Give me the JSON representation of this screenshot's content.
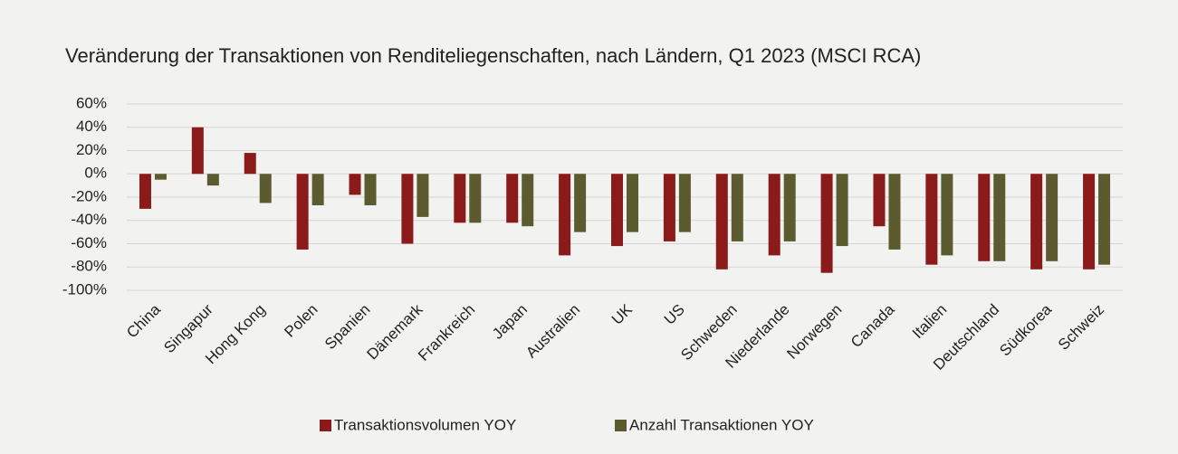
{
  "chart_data": {
    "type": "bar",
    "title": "Veränderung der Transaktionen von Renditeliegenschaften, nach Ländern, Q1 2023 (MSCI RCA)",
    "categories": [
      "China",
      "Singapur",
      "Hong Kong",
      "Polen",
      "Spanien",
      "Dänemark",
      "Frankreich",
      "Japan",
      "Australien",
      "UK",
      "US",
      "Schweden",
      "Niederlande",
      "Norwegen",
      "Canada",
      "Italien",
      "Deutschland",
      "Südkorea",
      "Schweiz"
    ],
    "series": [
      {
        "name": "Transaktionsvolumen YOY",
        "color": "#8b1a1a",
        "values": [
          -30,
          40,
          18,
          -65,
          -18,
          -60,
          -42,
          -42,
          -70,
          -62,
          -58,
          -82,
          -70,
          -85,
          -45,
          -78,
          -75,
          -82,
          -82
        ]
      },
      {
        "name": "Anzahl Transaktionen YOY",
        "color": "#5b5b2f",
        "values": [
          -5,
          -10,
          -25,
          -27,
          -27,
          -37,
          -42,
          -45,
          -50,
          -50,
          -50,
          -58,
          -58,
          -62,
          -65,
          -70,
          -75,
          -75,
          -78
        ]
      }
    ],
    "ylim": [
      -100,
      60
    ],
    "yticks": [
      {
        "value": -100,
        "label": "-100%"
      },
      {
        "value": -80,
        "label": "-80%"
      },
      {
        "value": -60,
        "label": "-60%"
      },
      {
        "value": -40,
        "label": "-40%"
      },
      {
        "value": -20,
        "label": "-20%"
      },
      {
        "value": 0,
        "label": "0%"
      },
      {
        "value": 20,
        "label": "20%"
      },
      {
        "value": 40,
        "label": "40%"
      },
      {
        "value": 60,
        "label": "60%"
      }
    ],
    "grid": true,
    "legend": "bottom"
  }
}
